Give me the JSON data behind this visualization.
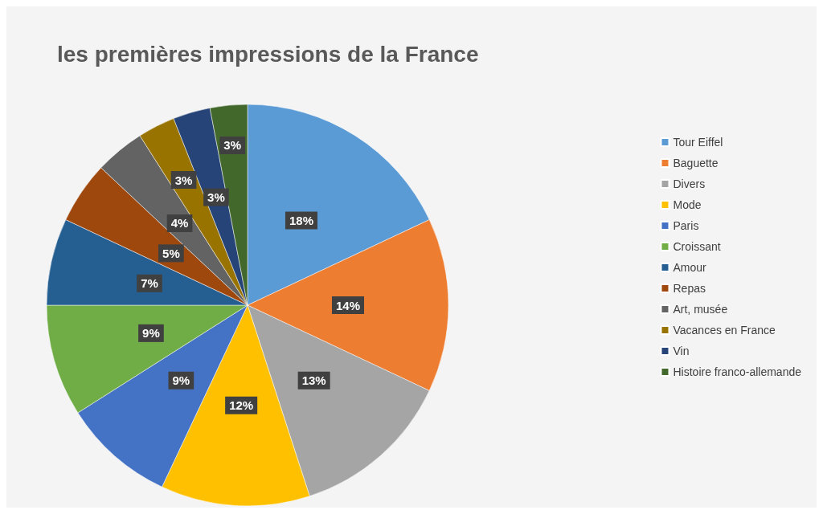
{
  "chart_data": {
    "type": "pie",
    "title": "les premières impressions de la France",
    "categories": [
      "Tour Eiffel",
      "Baguette",
      "Divers",
      "Mode",
      "Paris",
      "Croissant",
      "Amour",
      "Repas",
      "Art, musée",
      "Vacances en France",
      "Vin",
      "Histoire franco-allemande"
    ],
    "values": [
      18,
      14,
      13,
      12,
      9,
      9,
      7,
      5,
      4,
      3,
      3,
      3
    ],
    "colors": [
      "#5b9bd5",
      "#ed7d31",
      "#a5a5a5",
      "#ffc000",
      "#4472c4",
      "#70ad47",
      "#255e91",
      "#9e480e",
      "#636363",
      "#997300",
      "#264478",
      "#43682b"
    ],
    "value_labels": [
      "18%",
      "14%",
      "13%",
      "12%",
      "9%",
      "9%",
      "7%",
      "5%",
      "4%",
      "3%",
      "3%",
      "3%"
    ],
    "legend": "right"
  }
}
